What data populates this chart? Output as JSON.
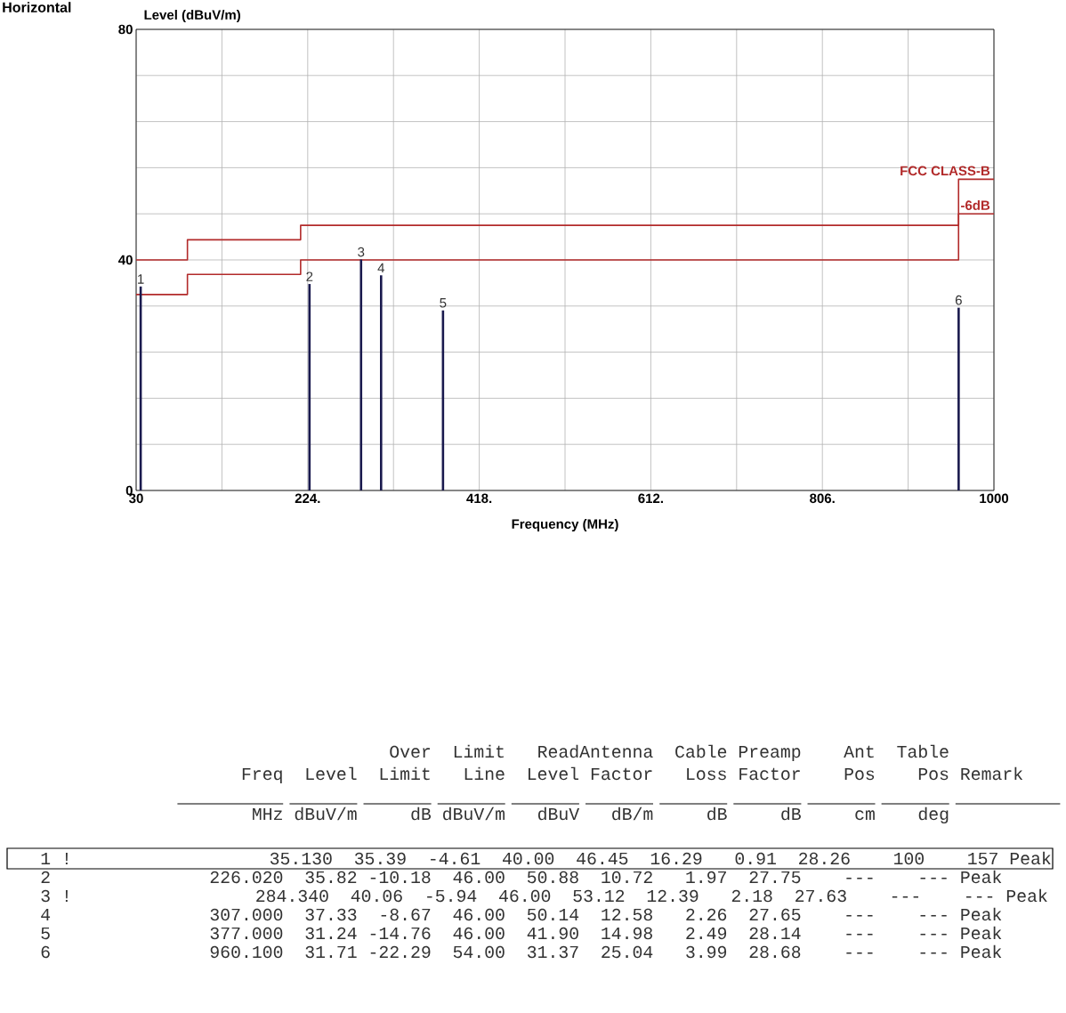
{
  "chart_data": {
    "type": "step",
    "title": "Horizontal",
    "xlabel": "Frequency (MHz)",
    "ylabel": "Level (dBuV/m)",
    "xlim": [
      30,
      1000
    ],
    "ylim": [
      0,
      80
    ],
    "xticks": [
      30,
      {
        "value": 127,
        "label": null
      },
      {
        "value": 224,
        "label": "224."
      },
      {
        "value": 321,
        "label": null
      },
      {
        "value": 418,
        "label": "418."
      },
      {
        "value": 515,
        "label": null
      },
      {
        "value": 612,
        "label": "612."
      },
      {
        "value": 709,
        "label": null
      },
      {
        "value": 806,
        "label": "806."
      },
      {
        "value": 903,
        "label": null
      },
      1000
    ],
    "yticks": [
      0,
      {
        "value": 8,
        "label": null
      },
      {
        "value": 16,
        "label": null
      },
      {
        "value": 24,
        "label": null
      },
      {
        "value": 32,
        "label": null
      },
      40,
      {
        "value": 48,
        "label": null
      },
      {
        "value": 56,
        "label": null
      },
      {
        "value": 64,
        "label": null
      },
      {
        "value": 72,
        "label": null
      },
      80
    ],
    "grid": true,
    "series": [
      {
        "name": "FCC CLASS-B",
        "color": "#b22a2a",
        "x": [
          30,
          88,
          216,
          960,
          1000
        ],
        "values": [
          40,
          43.5,
          46,
          54,
          54
        ]
      },
      {
        "name": "-6dB",
        "color": "#b22a2a",
        "x": [
          30,
          88,
          216,
          960,
          1000
        ],
        "values": [
          34,
          37.5,
          40,
          48,
          48
        ]
      },
      {
        "type": "bar",
        "color": "#1a1a4e",
        "x": [
          35.13,
          226.02,
          284.34,
          307.0,
          377.0,
          960.1
        ],
        "values": [
          35.39,
          35.82,
          40.06,
          37.33,
          31.24,
          31.71
        ]
      }
    ],
    "annotations": [
      {
        "text": "1",
        "x": 35.13,
        "y": 35.39
      },
      {
        "text": "2",
        "x": 226.02,
        "y": 35.82
      },
      {
        "text": "3",
        "x": 284.34,
        "y": 40.06
      },
      {
        "text": "4",
        "x": 307.0,
        "y": 37.33
      },
      {
        "text": "5",
        "x": 377.0,
        "y": 31.24
      },
      {
        "text": "6",
        "x": 960.1,
        "y": 31.71
      },
      "                                 Over  Limit   ReadAntenna  Cable Preamp    Ant  Table",
      "                   Freq  Level  Limit   Line  Level Factor   Loss Factor    Pos    Pos Remark",
      "                    MHz dBuV/m     dB dBuV/m   dBuV   dB/m     dB     dB     cm    deg",
      "1 !              35.130  35.39  -4.61  40.00  46.45  16.29   0.91  28.26    100    157 Peak",
      "2               226.020  35.82 -10.18  46.00  50.88  10.72   1.97  27.75    ---    --- Peak",
      "3 !             284.340  40.06  -5.94  46.00  53.12  12.39   2.18  27.63    ---    --- Peak",
      "4               307.000  37.33  -8.67  46.00  50.14  12.58   2.26  27.65    ---    --- Peak",
      "5               377.000  31.24 -14.76  46.00  41.90  14.98   2.49  28.14    ---    --- Peak",
      "6               960.100  31.71 -22.29  54.00  31.37  25.04   3.99  28.68    ---    --- Peak"
    ]
  }
}
